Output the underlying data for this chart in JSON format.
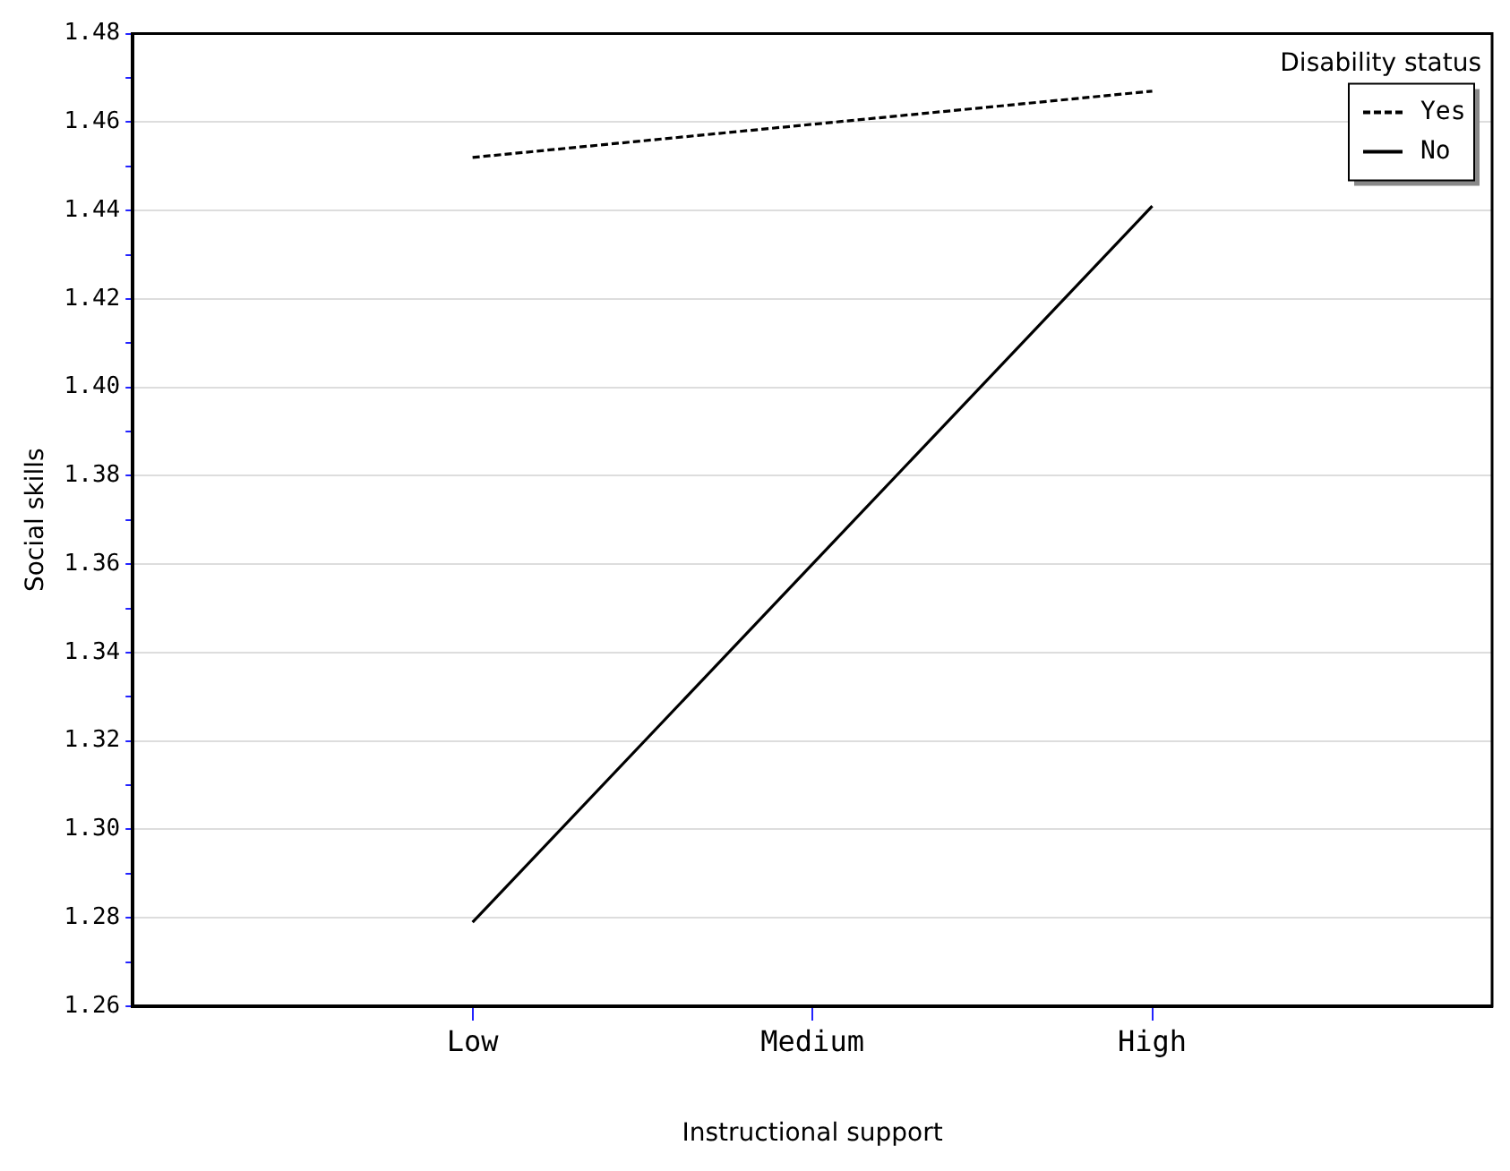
{
  "chart_data": {
    "type": "line",
    "xlabel": "Instructional support",
    "ylabel": "Social skills",
    "legend_title": "Disability status",
    "categories": [
      "Low",
      "Medium",
      "High"
    ],
    "series": [
      {
        "name": "Yes",
        "color": "#000000",
        "line_style": "dashed",
        "values": [
          1.452,
          1.4595,
          1.467
        ]
      },
      {
        "name": "No",
        "color": "#000000",
        "line_style": "solid",
        "values": [
          1.279,
          1.36,
          1.441
        ]
      }
    ],
    "ylim": [
      1.26,
      1.48
    ],
    "yticks": [
      {
        "value": 1.26,
        "label": "1.26"
      },
      {
        "value": 1.27,
        "label": null
      },
      {
        "value": 1.28,
        "label": "1.28"
      },
      {
        "value": 1.29,
        "label": null
      },
      {
        "value": 1.3,
        "label": "1.30"
      },
      {
        "value": 1.31,
        "label": null
      },
      {
        "value": 1.32,
        "label": "1.32"
      },
      {
        "value": 1.33,
        "label": null
      },
      {
        "value": 1.34,
        "label": "1.34"
      },
      {
        "value": 1.35,
        "label": null
      },
      {
        "value": 1.36,
        "label": "1.36"
      },
      {
        "value": 1.37,
        "label": null
      },
      {
        "value": 1.38,
        "label": "1.38"
      },
      {
        "value": 1.39,
        "label": null
      },
      {
        "value": 1.4,
        "label": "1.40"
      },
      {
        "value": 1.41,
        "label": null
      },
      {
        "value": 1.42,
        "label": "1.42"
      },
      {
        "value": 1.43,
        "label": null
      },
      {
        "value": 1.44,
        "label": "1.44"
      },
      {
        "value": 1.45,
        "label": null
      },
      {
        "value": 1.46,
        "label": "1.46"
      },
      {
        "value": 1.47,
        "label": null
      },
      {
        "value": 1.48,
        "label": "1.48"
      }
    ],
    "grid": "y",
    "legend": "top right",
    "marker": "none"
  }
}
